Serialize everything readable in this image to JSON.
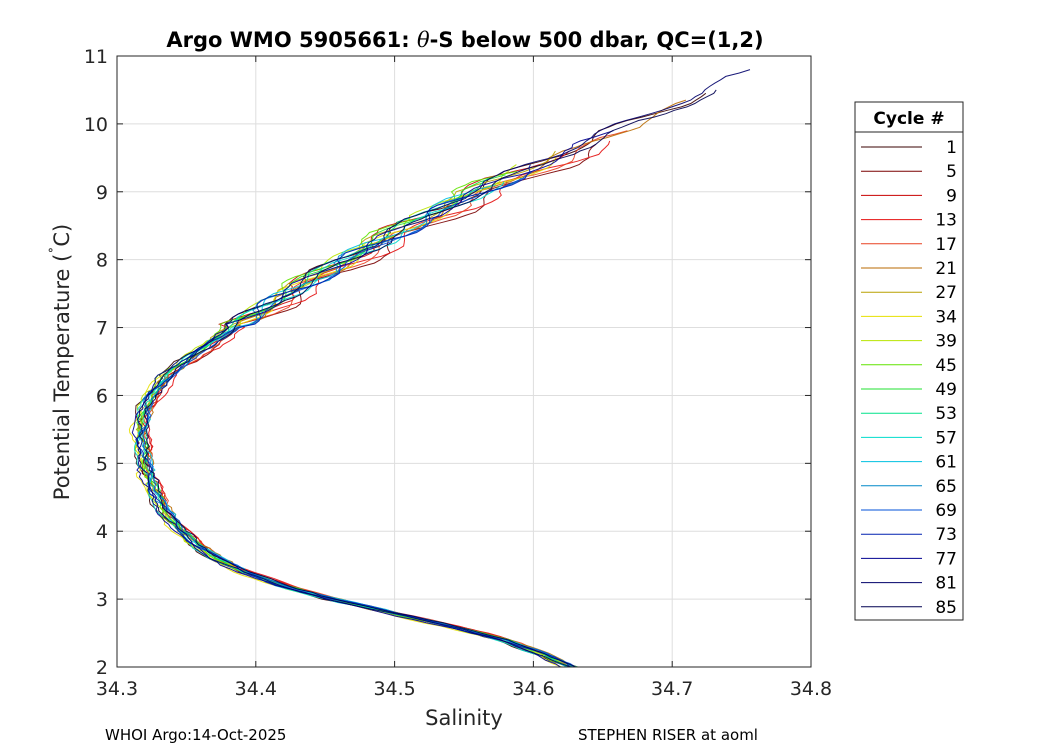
{
  "chart_data": {
    "type": "line",
    "title": "Argo WMO 5905661: θ-S below 500 dbar,  QC=(1,2)",
    "title_parts": {
      "before": "Argo WMO 5905661: ",
      "symbol": "θ",
      "after": "-S below 500 dbar,  QC=(1,2)"
    },
    "xlabel": "Salinity",
    "ylabel": "Potential Temperature (˚C)",
    "ylabel_parts": {
      "main": "Potential Temperature (",
      "degree": "˚",
      "unit": "C)"
    },
    "xlim": [
      34.3,
      34.8
    ],
    "ylim": [
      2,
      11
    ],
    "xticks": [
      34.3,
      34.4,
      34.5,
      34.6,
      34.7,
      34.8
    ],
    "xtick_labels": [
      "34.3",
      "34.4",
      "34.5",
      "34.6",
      "34.7",
      "34.8"
    ],
    "yticks": [
      2,
      3,
      4,
      5,
      6,
      7,
      8,
      9,
      10,
      11
    ],
    "ytick_labels": [
      "2",
      "3",
      "4",
      "5",
      "6",
      "7",
      "8",
      "9",
      "10",
      "11"
    ],
    "grid": true,
    "legend": {
      "title": "Cycle #",
      "placement": "right-outside",
      "entries": [
        {
          "label": "1",
          "color": "#3a0000"
        },
        {
          "label": "5",
          "color": "#7a0000"
        },
        {
          "label": "9",
          "color": "#c80000"
        },
        {
          "label": "13",
          "color": "#e41010"
        },
        {
          "label": "17",
          "color": "#e84020"
        },
        {
          "label": "21",
          "color": "#b86a00"
        },
        {
          "label": "27",
          "color": "#b8a000"
        },
        {
          "label": "34",
          "color": "#e6e000"
        },
        {
          "label": "39",
          "color": "#b8e400"
        },
        {
          "label": "45",
          "color": "#60e400"
        },
        {
          "label": "49",
          "color": "#20e030"
        },
        {
          "label": "53",
          "color": "#00e28a"
        },
        {
          "label": "57",
          "color": "#00dccc"
        },
        {
          "label": "61",
          "color": "#00c0e0"
        },
        {
          "label": "65",
          "color": "#0088c8"
        },
        {
          "label": "69",
          "color": "#0050d8"
        },
        {
          "label": "73",
          "color": "#0020b0"
        },
        {
          "label": "77",
          "color": "#000090"
        },
        {
          "label": "81",
          "color": "#00006a"
        },
        {
          "label": "85",
          "color": "#000050"
        }
      ]
    },
    "base_profile": [
      {
        "t": 2.0,
        "s": 34.627
      },
      {
        "t": 2.2,
        "s": 34.605
      },
      {
        "t": 2.4,
        "s": 34.578
      },
      {
        "t": 2.6,
        "s": 34.54
      },
      {
        "t": 2.8,
        "s": 34.498
      },
      {
        "t": 3.0,
        "s": 34.455
      },
      {
        "t": 3.2,
        "s": 34.418
      },
      {
        "t": 3.4,
        "s": 34.392
      },
      {
        "t": 3.6,
        "s": 34.372
      },
      {
        "t": 3.8,
        "s": 34.357
      },
      {
        "t": 4.0,
        "s": 34.346
      },
      {
        "t": 4.3,
        "s": 34.334
      },
      {
        "t": 4.6,
        "s": 34.326
      },
      {
        "t": 5.0,
        "s": 34.32
      },
      {
        "t": 5.4,
        "s": 34.317
      },
      {
        "t": 5.8,
        "s": 34.32
      },
      {
        "t": 6.0,
        "s": 34.325
      },
      {
        "t": 6.3,
        "s": 34.337
      },
      {
        "t": 6.6,
        "s": 34.356
      },
      {
        "t": 7.0,
        "s": 34.385
      },
      {
        "t": 7.5,
        "s": 34.425
      },
      {
        "t": 8.0,
        "s": 34.468
      },
      {
        "t": 8.5,
        "s": 34.514
      },
      {
        "t": 9.0,
        "s": 34.563
      },
      {
        "t": 9.5,
        "s": 34.618
      },
      {
        "t": 10.0,
        "s": 34.675
      },
      {
        "t": 10.5,
        "s": 34.735
      },
      {
        "t": 10.83,
        "s": 34.77
      }
    ],
    "profile_tops": {
      "1": 10.45,
      "5": 9.7,
      "9": 9.6,
      "13": 9.75,
      "17": 9.9,
      "21": 10.35,
      "27": 9.6,
      "34": 9.5,
      "39": 9.4,
      "45": 9.3,
      "49": 9.25,
      "53": 9.2,
      "57": 9.15,
      "61": 9.1,
      "65": 9.2,
      "69": 9.3,
      "73": 9.4,
      "77": 9.9,
      "81": 10.83,
      "85": 10.5
    }
  },
  "footer": {
    "left": "WHOI Argo:14-Oct-2025",
    "right": "STEPHEN RISER at aoml"
  }
}
